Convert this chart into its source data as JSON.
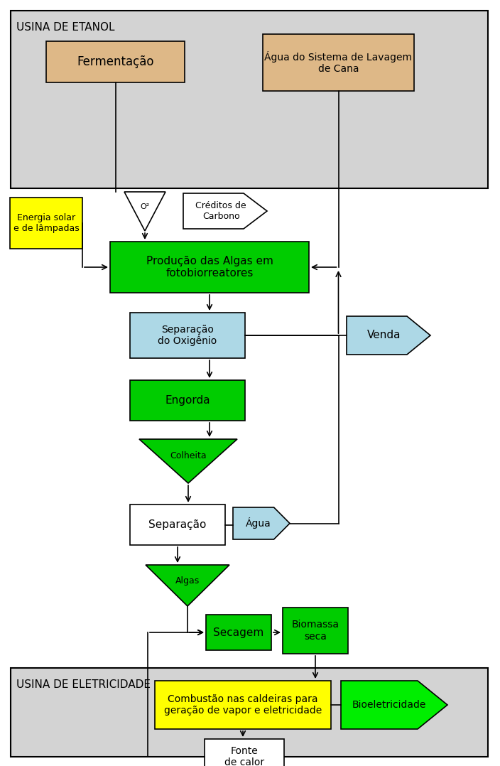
{
  "bg_gray": "#d3d3d3",
  "white_bg": "#ffffff",
  "green_box": "#00cc00",
  "green_bright": "#00ee00",
  "yellow_box": "#ffff00",
  "blue_box": "#add8e6",
  "tan_box": "#deb887",
  "title_etanol": "USINA DE ETANOL",
  "title_eletricidade": "USINA DE ELETRICIDADE",
  "lbl_ferm": "Fermentação",
  "lbl_agua_cana": "Água do Sistema de Lavagem\nde Cana",
  "lbl_energia": "Energia solar\ne de lâmpadas",
  "lbl_o2": "O²",
  "lbl_creditos": "Créditos de\nCarbono",
  "lbl_producao": "Produção das Algas em\nfotobiorreatores",
  "lbl_sep_ox": "Separação\ndo Oxigênio",
  "lbl_venda": "Venda",
  "lbl_engorda": "Engorda",
  "lbl_colheita": "Colheita",
  "lbl_sep": "Separação",
  "lbl_agua": "Água",
  "lbl_algas": "Algas",
  "lbl_secagem": "Secagem",
  "lbl_biomassa": "Biomassa\nseca",
  "lbl_combustao": "Combustão nas caldeiras para\ngeração de vapor e eletricidade",
  "lbl_bioelet": "Bioeletricidade",
  "lbl_fonte": "Fonte\nde calor"
}
